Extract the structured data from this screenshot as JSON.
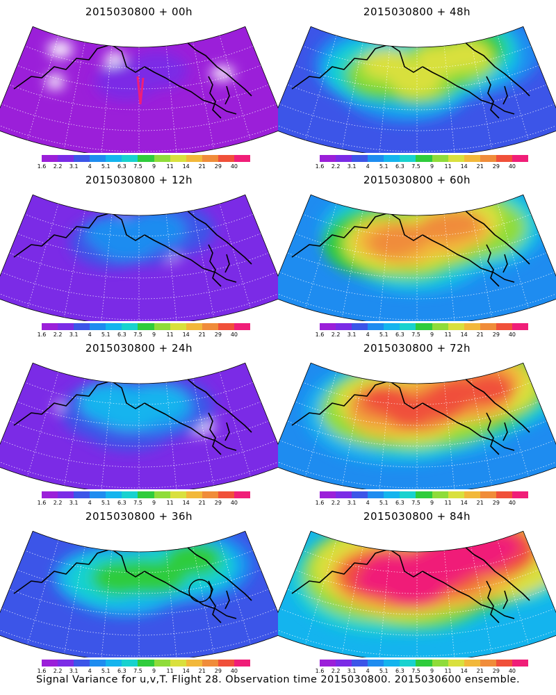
{
  "colorscale": {
    "labels": [
      "1.6",
      "2.2",
      "3.1",
      "4",
      "5.1",
      "6.3",
      "7.5",
      "9",
      "11",
      "14",
      "21",
      "29",
      "40"
    ],
    "colors": [
      "#9b1fd9",
      "#7b2be6",
      "#3c55e8",
      "#1e8cf0",
      "#14b4ee",
      "#18d2cf",
      "#2fcc3c",
      "#8fdc3a",
      "#d9e03e",
      "#f2b83a",
      "#f08c3a",
      "#f0503a",
      "#f01e78"
    ]
  },
  "panels": [
    {
      "title": "2015030800 + 00h",
      "intensity": 0.1
    },
    {
      "title": "2015030800 + 48h",
      "intensity": 0.52
    },
    {
      "title": "2015030800 + 12h",
      "intensity": 0.24
    },
    {
      "title": "2015030800 + 60h",
      "intensity": 0.62
    },
    {
      "title": "2015030800 + 24h",
      "intensity": 0.33
    },
    {
      "title": "2015030800 + 72h",
      "intensity": 0.72
    },
    {
      "title": "2015030800 + 36h",
      "intensity": 0.42
    },
    {
      "title": "2015030800 + 84h",
      "intensity": 0.8
    }
  ],
  "caption": "Signal Variance for u,v,T. Flight 28. Observation time 2015030800. 2015030600 ensemble."
}
